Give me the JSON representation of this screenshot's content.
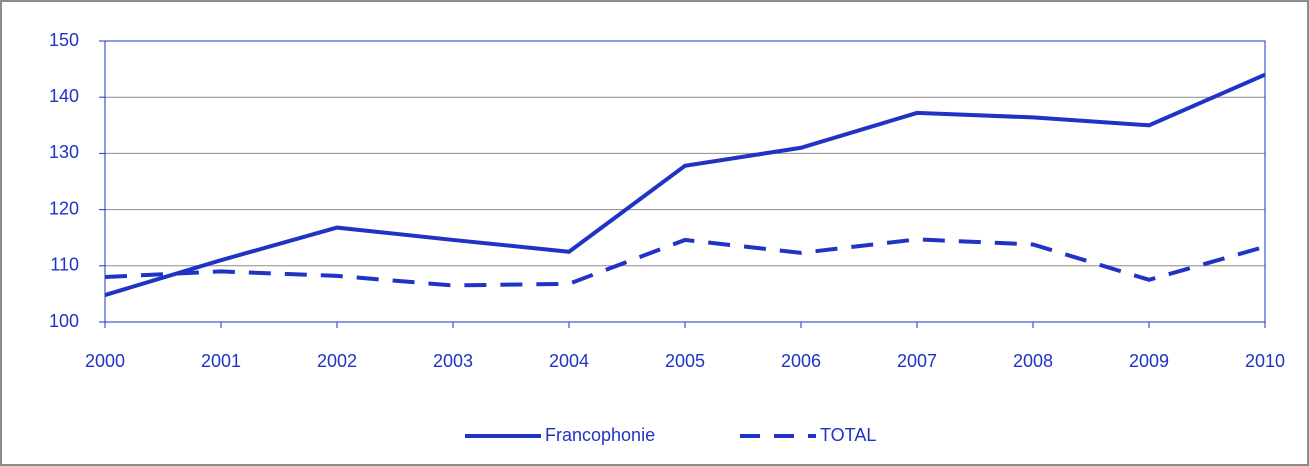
{
  "chart_data": {
    "type": "line",
    "x": [
      2000,
      2001,
      2002,
      2003,
      2004,
      2005,
      2006,
      2007,
      2008,
      2009,
      2010
    ],
    "xlim": [
      2000,
      2010
    ],
    "xticks": [
      2000,
      2001,
      2002,
      2003,
      2004,
      2005,
      2006,
      2007,
      2008,
      2009,
      2010
    ],
    "ylim": [
      100,
      150
    ],
    "yticks": [
      100,
      110,
      120,
      130,
      140,
      150
    ],
    "grid": true,
    "legend": "bottom",
    "series": [
      {
        "name": "Francophonie",
        "color": "#1f33c4",
        "linestyle": "solid",
        "values": [
          104.8,
          111,
          116.8,
          114.6,
          112.5,
          127.8,
          131,
          137.2,
          136.4,
          135,
          144
        ]
      },
      {
        "name": "TOTAL",
        "color": "#1f33c4",
        "linestyle": "dashed",
        "values": [
          108,
          109,
          108.2,
          106.5,
          106.8,
          114.6,
          112.3,
          114.7,
          113.8,
          107.5,
          113.4
        ]
      }
    ]
  }
}
